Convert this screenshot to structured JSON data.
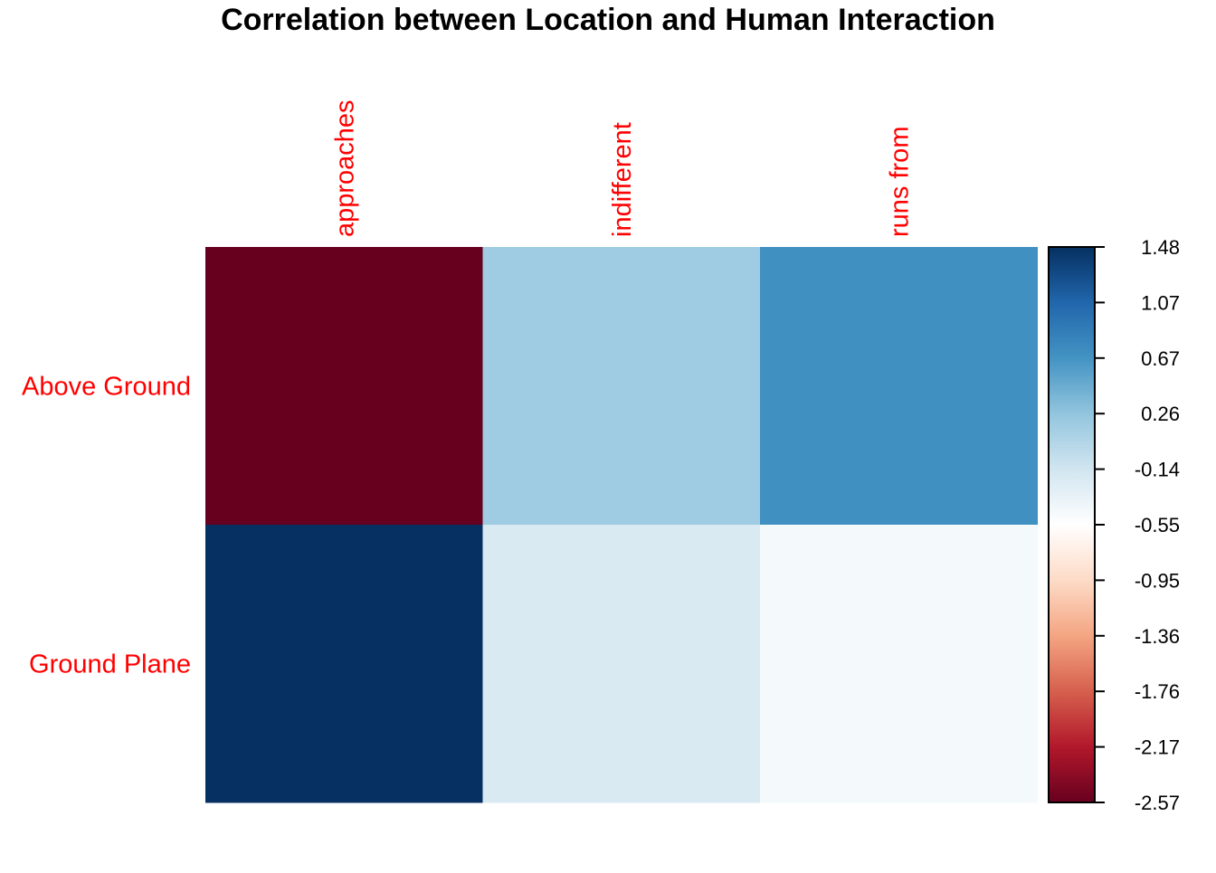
{
  "chart_data": {
    "type": "heatmap",
    "title": "Correlation between Location and Human Interaction",
    "rows": [
      "Above Ground",
      "Ground Plane"
    ],
    "columns": [
      "approaches",
      "indifferent",
      "runs from"
    ],
    "values": [
      [
        -2.57,
        0.18,
        0.7
      ],
      [
        1.48,
        -0.22,
        -0.45
      ]
    ],
    "colorbar": {
      "ticks": [
        "1.48",
        "1.07",
        "0.67",
        "0.26",
        "-0.14",
        "-0.55",
        "-0.95",
        "-1.36",
        "-1.76",
        "-2.17",
        "-2.57"
      ],
      "range": [
        -2.57,
        1.48
      ],
      "palette": [
        "#67001F",
        "#B2182B",
        "#D6604D",
        "#F4A582",
        "#FDDBC7",
        "#FFFFFF",
        "#D1E5F0",
        "#92C5DE",
        "#4393C3",
        "#2166AC",
        "#053061"
      ]
    },
    "label_color": "#FF0000"
  }
}
